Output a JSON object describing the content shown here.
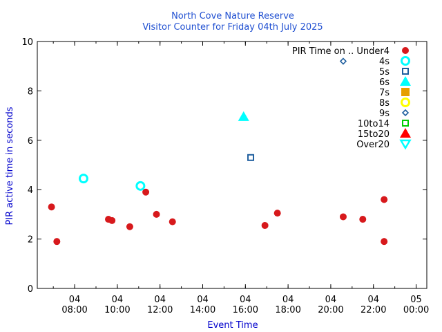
{
  "chart_data": {
    "type": "scatter",
    "title": "North Cove Nature Reserve",
    "subtitle": "Visitor Counter for Friday 04th July 2025",
    "xlabel": "Event Time",
    "ylabel": "PIR active time in seconds",
    "ylim": [
      0,
      10
    ],
    "yticks": [
      "0",
      "2",
      "4",
      "6",
      "8",
      "10"
    ],
    "xlim": [
      "2025-07-04 06:15",
      "2025-07-05 00:30"
    ],
    "xticks": [
      {
        "t": "2025-07-04 08:00",
        "top": "04",
        "bottom": "08:00"
      },
      {
        "t": "2025-07-04 10:00",
        "top": "04",
        "bottom": "10:00"
      },
      {
        "t": "2025-07-04 12:00",
        "top": "04",
        "bottom": "12:00"
      },
      {
        "t": "2025-07-04 14:00",
        "top": "04",
        "bottom": "14:00"
      },
      {
        "t": "2025-07-04 16:00",
        "top": "04",
        "bottom": "16:00"
      },
      {
        "t": "2025-07-04 18:00",
        "top": "04",
        "bottom": "18:00"
      },
      {
        "t": "2025-07-04 20:00",
        "top": "04",
        "bottom": "20:00"
      },
      {
        "t": "2025-07-04 22:00",
        "top": "04",
        "bottom": "22:00"
      },
      {
        "t": "2025-07-05 00:00",
        "top": "05",
        "bottom": "00:00"
      }
    ],
    "legend_position": "top-right",
    "series": [
      {
        "name": "PIR Time on .. Under4",
        "marker": "circle-filled",
        "color": "#d7191c",
        "points": [
          {
            "x": "2025-07-04 06:55",
            "y": 3.3
          },
          {
            "x": "2025-07-04 07:10",
            "y": 1.9
          },
          {
            "x": "2025-07-04 09:35",
            "y": 2.8
          },
          {
            "x": "2025-07-04 09:45",
            "y": 2.75
          },
          {
            "x": "2025-07-04 10:35",
            "y": 2.5
          },
          {
            "x": "2025-07-04 11:20",
            "y": 3.9
          },
          {
            "x": "2025-07-04 11:50",
            "y": 3.0
          },
          {
            "x": "2025-07-04 12:35",
            "y": 2.7
          },
          {
            "x": "2025-07-04 16:55",
            "y": 2.55
          },
          {
            "x": "2025-07-04 17:30",
            "y": 3.05
          },
          {
            "x": "2025-07-04 20:35",
            "y": 2.9
          },
          {
            "x": "2025-07-04 21:30",
            "y": 2.8
          },
          {
            "x": "2025-07-04 22:30",
            "y": 3.6
          },
          {
            "x": "2025-07-04 22:30",
            "y": 1.9
          }
        ]
      },
      {
        "name": "4s",
        "marker": "circle-open",
        "color": "#00ffff",
        "points": [
          {
            "x": "2025-07-04 08:25",
            "y": 4.45
          },
          {
            "x": "2025-07-04 11:05",
            "y": 4.15
          }
        ]
      },
      {
        "name": "5s",
        "marker": "square-open",
        "color": "#1f5f9f",
        "points": [
          {
            "x": "2025-07-04 16:15",
            "y": 5.3
          }
        ]
      },
      {
        "name": "6s",
        "marker": "triangle-filled",
        "color": "#00ffff",
        "points": [
          {
            "x": "2025-07-04 15:55",
            "y": 6.95
          }
        ]
      },
      {
        "name": "7s",
        "marker": "square-filled",
        "color": "#e69f00",
        "points": []
      },
      {
        "name": "8s",
        "marker": "circle-open",
        "color": "#ffff00",
        "points": []
      },
      {
        "name": "9s",
        "marker": "diamond-open",
        "color": "#1f5f9f",
        "points": [
          {
            "x": "2025-07-04 20:35",
            "y": 9.2
          }
        ]
      },
      {
        "name": "10to14",
        "marker": "square-open",
        "color": "#00cc00",
        "points": []
      },
      {
        "name": "15to20",
        "marker": "triangle-filled",
        "color": "#ff0000",
        "points": []
      },
      {
        "name": "Over20",
        "marker": "triangle-down-open",
        "color": "#00ffff",
        "points": []
      }
    ]
  }
}
